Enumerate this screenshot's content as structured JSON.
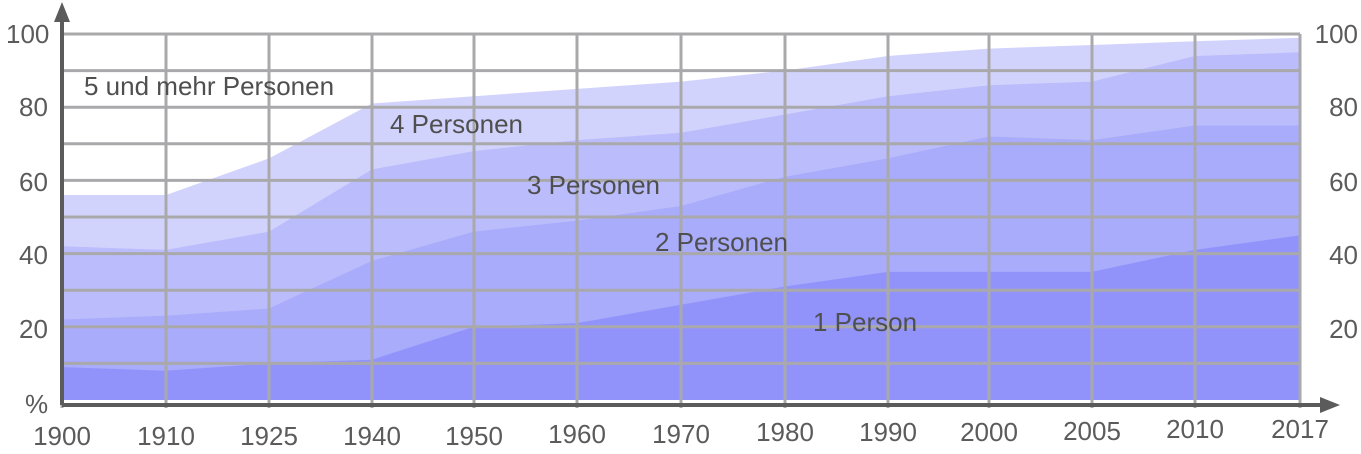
{
  "chart_data": {
    "type": "area",
    "stacked": true,
    "x": [
      "1900",
      "1910",
      "1925",
      "1940",
      "1950",
      "1960",
      "1970",
      "1980",
      "1990",
      "2000",
      "2005",
      "2010",
      "2017"
    ],
    "ylim": [
      0,
      100
    ],
    "y_ticks_left": [
      "100",
      "80",
      "60",
      "40",
      "20",
      "%"
    ],
    "y_ticks_right": [
      "100",
      "80",
      "60",
      "40",
      "20"
    ],
    "grid": true,
    "bands": [
      {
        "label": "1 Person",
        "color": "#9193fb",
        "top": [
          9,
          8,
          10,
          11,
          20,
          21,
          26,
          31,
          35,
          35,
          35,
          41,
          45
        ]
      },
      {
        "label": "2 Personen",
        "color": "#a9abfb",
        "top": [
          22,
          23,
          25,
          38,
          46,
          49,
          53,
          61,
          66,
          72,
          71,
          75,
          75
        ]
      },
      {
        "label": "3 Personen",
        "color": "#bbbcfb",
        "top": [
          42,
          41,
          46,
          63,
          68,
          71,
          73,
          78,
          83,
          86,
          87,
          94,
          95
        ]
      },
      {
        "label": "4 Personen",
        "color": "#d2d3fd",
        "top": [
          56,
          56,
          66,
          81,
          83,
          85,
          87,
          90,
          94,
          96,
          97,
          98,
          99
        ]
      },
      {
        "label": "5 und mehr Personen",
        "color": "#ffffff",
        "top": [
          100,
          100,
          100,
          100,
          100,
          100,
          100,
          100,
          100,
          100,
          100,
          100,
          100
        ]
      }
    ],
    "colors": {
      "grid": "#a9a9ab",
      "axis": "#5b5b5b"
    }
  }
}
